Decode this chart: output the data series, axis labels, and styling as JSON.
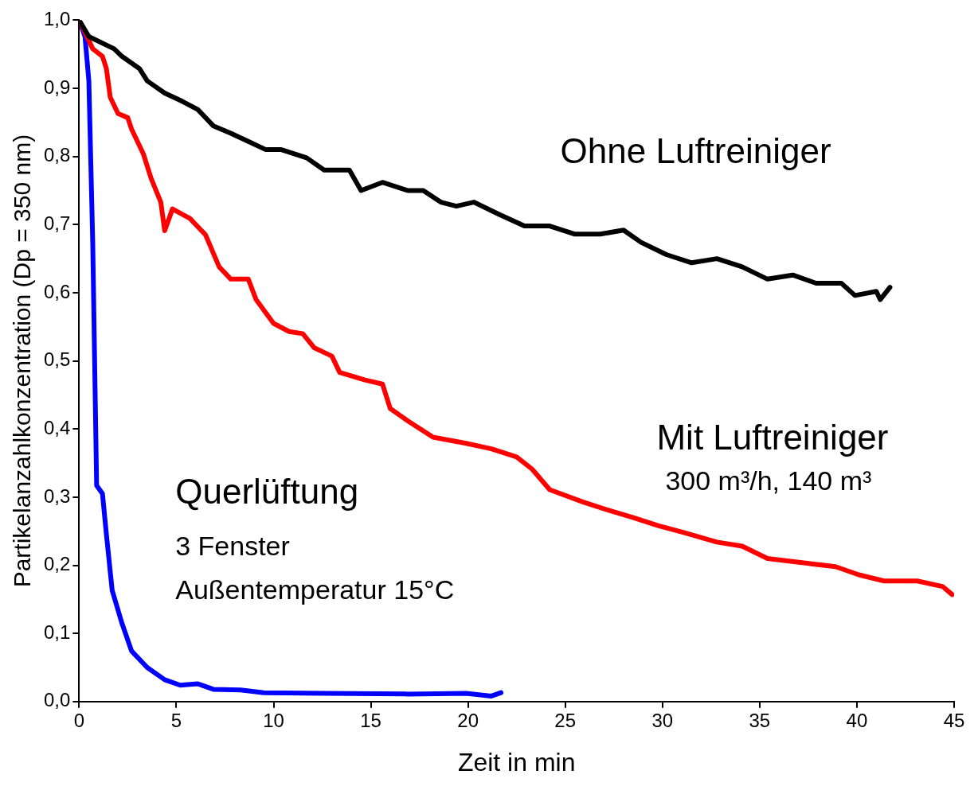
{
  "chart_data": {
    "type": "line",
    "xlabel": "Zeit in min",
    "ylabel": "Partikelanzahlkonzentration (Dp = 350 nm)",
    "xlim": [
      0,
      45
    ],
    "xticks": [
      0,
      5,
      10,
      15,
      20,
      25,
      30,
      35,
      40,
      45
    ],
    "ylim": [
      0,
      1
    ],
    "yticks": [
      {
        "value": 0,
        "label": "0,0"
      },
      {
        "value": 0.1,
        "label": "0,1"
      },
      {
        "value": 0.2,
        "label": "0,2"
      },
      {
        "value": 0.3,
        "label": "0,3"
      },
      {
        "value": 0.4,
        "label": "0,4"
      },
      {
        "value": 0.5,
        "label": "0,5"
      },
      {
        "value": 0.6,
        "label": "0,6"
      },
      {
        "value": 0.7,
        "label": "0,7"
      },
      {
        "value": 0.8,
        "label": "0,8"
      },
      {
        "value": 0.9,
        "label": "0,9"
      },
      {
        "value": 1,
        "label": "1,0"
      }
    ],
    "grid": false,
    "legend": false,
    "marker": "none",
    "line_style": "solid",
    "annotations": [
      "300 m³/h, 140 m³",
      "3 Fenster",
      "Außentemperatur 15°C"
    ],
    "series": [
      {
        "name": "Ohne Luftreiniger",
        "color": "#000000",
        "x": [
          0,
          0.5,
          1.8,
          2.2,
          3.1,
          3.5,
          4.4,
          5.3,
          6.1,
          6.9,
          7.8,
          8.7,
          9.6,
          10.4,
          11.7,
          12.6,
          13.9,
          14.5,
          15.6,
          16.9,
          17.7,
          18.6,
          19.4,
          20.3,
          21.6,
          22.9,
          24.2,
          25.5,
          26.8,
          28.0,
          28.9,
          30.2,
          31.5,
          32.8,
          34.1,
          35.4,
          36.7,
          37.9,
          39.2,
          39.9,
          41.0,
          41.2,
          41.7
        ],
        "values": [
          1.0,
          0.976,
          0.958,
          0.947,
          0.929,
          0.911,
          0.893,
          0.881,
          0.869,
          0.845,
          0.834,
          0.822,
          0.81,
          0.81,
          0.798,
          0.78,
          0.78,
          0.75,
          0.762,
          0.75,
          0.75,
          0.733,
          0.727,
          0.733,
          0.715,
          0.698,
          0.698,
          0.686,
          0.686,
          0.692,
          0.674,
          0.656,
          0.644,
          0.65,
          0.638,
          0.62,
          0.626,
          0.614,
          0.614,
          0.596,
          0.602,
          0.59,
          0.608
        ]
      },
      {
        "name": "Mit Luftreiniger",
        "color": "#ff0000",
        "x": [
          0,
          0.7,
          1.2,
          1.4,
          1.6,
          2.0,
          2.5,
          2.7,
          3.3,
          3.7,
          4.2,
          4.4,
          4.8,
          5.7,
          6.5,
          7.2,
          7.8,
          8.7,
          9.1,
          10.0,
          10.8,
          11.5,
          12.1,
          13.0,
          13.4,
          14.7,
          15.6,
          16.0,
          16.9,
          18.2,
          19.9,
          21.2,
          22.5,
          23.3,
          24.2,
          25.9,
          27.2,
          28.5,
          29.8,
          31.1,
          32.8,
          34.1,
          35.4,
          37.1,
          38.9,
          40.1,
          41.4,
          43.1,
          44.4,
          44.9
        ],
        "values": [
          1.0,
          0.958,
          0.947,
          0.929,
          0.887,
          0.863,
          0.857,
          0.84,
          0.804,
          0.768,
          0.733,
          0.691,
          0.723,
          0.709,
          0.685,
          0.638,
          0.62,
          0.62,
          0.59,
          0.555,
          0.543,
          0.54,
          0.519,
          0.507,
          0.483,
          0.472,
          0.466,
          0.43,
          0.412,
          0.388,
          0.379,
          0.371,
          0.359,
          0.341,
          0.311,
          0.293,
          0.281,
          0.27,
          0.258,
          0.248,
          0.234,
          0.228,
          0.21,
          0.204,
          0.198,
          0.186,
          0.177,
          0.177,
          0.169,
          0.157
        ]
      },
      {
        "name": "Querlüftung",
        "color": "#0000ff",
        "x": [
          0,
          0.3,
          0.5,
          0.7,
          0.9,
          1.2,
          1.4,
          1.7,
          2.2,
          2.7,
          3.5,
          4.4,
          5.2,
          6.1,
          6.9,
          8.3,
          9.5,
          12.6,
          16.9,
          19.9,
          21.2,
          21.7
        ],
        "values": [
          1.0,
          0.976,
          0.911,
          0.673,
          0.317,
          0.305,
          0.246,
          0.163,
          0.115,
          0.074,
          0.05,
          0.032,
          0.024,
          0.026,
          0.018,
          0.017,
          0.013,
          0.012,
          0.011,
          0.012,
          0.008,
          0.013
        ]
      }
    ]
  }
}
